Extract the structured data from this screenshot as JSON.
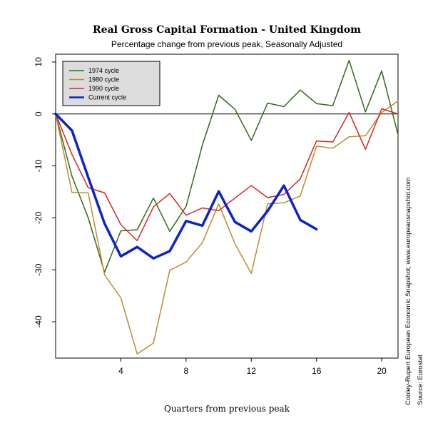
{
  "chart_data": {
    "type": "line",
    "title": "Real Gross Capital Formation - United Kingdom",
    "subtitle": "Percentage change from previous peak, Seasonally Adjusted",
    "xlabel": "Quarters from previous peak",
    "ylabel": "",
    "xlim": [
      0,
      21
    ],
    "ylim": [
      -47,
      11.5
    ],
    "xticks": [
      4,
      8,
      12,
      16,
      20
    ],
    "yticks": [
      10,
      0,
      -10,
      -20,
      -30,
      -40
    ],
    "zero_line": true,
    "grid": false,
    "legend_position": "top-left",
    "series": [
      {
        "name": "1974 cycle",
        "color": "#2e6b1a",
        "line_width": 1.5,
        "x": [
          0,
          1,
          2,
          3,
          4,
          5,
          6,
          7,
          8,
          9,
          10,
          11,
          12,
          13,
          14,
          15,
          16,
          17,
          18,
          19,
          20,
          21
        ],
        "values": [
          0,
          -12,
          -20,
          -30.5,
          -22.5,
          -22.3,
          -16.2,
          -22.6,
          -17.8,
          -6,
          3.6,
          0.9,
          -5.1,
          2.1,
          1.4,
          4.6,
          2,
          1.6,
          10.3,
          0.4,
          8.3,
          -4
        ]
      },
      {
        "name": "1980 cycle",
        "color": "#c08a2a",
        "line_width": 1.5,
        "x": [
          0,
          1,
          2,
          3,
          4,
          5,
          6,
          7,
          8,
          9,
          10,
          11,
          12,
          13,
          14,
          15,
          16,
          17,
          18,
          19,
          20,
          21
        ],
        "values": [
          0,
          -15.1,
          -15.2,
          -31,
          -35.4,
          -46.2,
          -44.1,
          -30.1,
          -28.5,
          -24.8,
          -17.3,
          -25,
          -30.7,
          -17.3,
          -17.1,
          -15.8,
          -6.2,
          -6.6,
          -4.4,
          -4.2,
          0.3,
          2.5
        ]
      },
      {
        "name": "1990 cycle",
        "color": "#d7261e",
        "line_width": 1.5,
        "x": [
          0,
          1,
          2,
          3,
          4,
          5,
          6,
          7,
          8,
          9,
          10,
          11,
          12,
          13,
          14,
          15,
          16,
          17,
          18,
          19,
          20,
          21
        ],
        "values": [
          0,
          -7.8,
          -14.2,
          -15.2,
          -21.3,
          -24.4,
          -17.9,
          -15.3,
          -19.5,
          -18.1,
          -18.6,
          -16.2,
          -13.8,
          -16.1,
          -15.5,
          -12.5,
          -5.2,
          -5.4,
          0.3,
          -6.8,
          1,
          0
        ]
      },
      {
        "name": "Current cycle",
        "color": "#0a24c8",
        "line_width": 3.5,
        "x": [
          0,
          1,
          2,
          3,
          4,
          5,
          6,
          7,
          8,
          9,
          10,
          11,
          12,
          13,
          14,
          15,
          16
        ],
        "values": [
          0,
          -3.2,
          -12.2,
          -21.1,
          -27.4,
          -25.6,
          -27.8,
          -26.4,
          -20.6,
          -21.5,
          -14.9,
          -20.8,
          -22.6,
          -18.7,
          -13.8,
          -20.4,
          -22.2
        ]
      }
    ]
  },
  "side_notes": {
    "credit": "Cooley-Rupert European Economic Snapshot; www.europeansnapshot.com",
    "source": "Source: Eurostat"
  }
}
